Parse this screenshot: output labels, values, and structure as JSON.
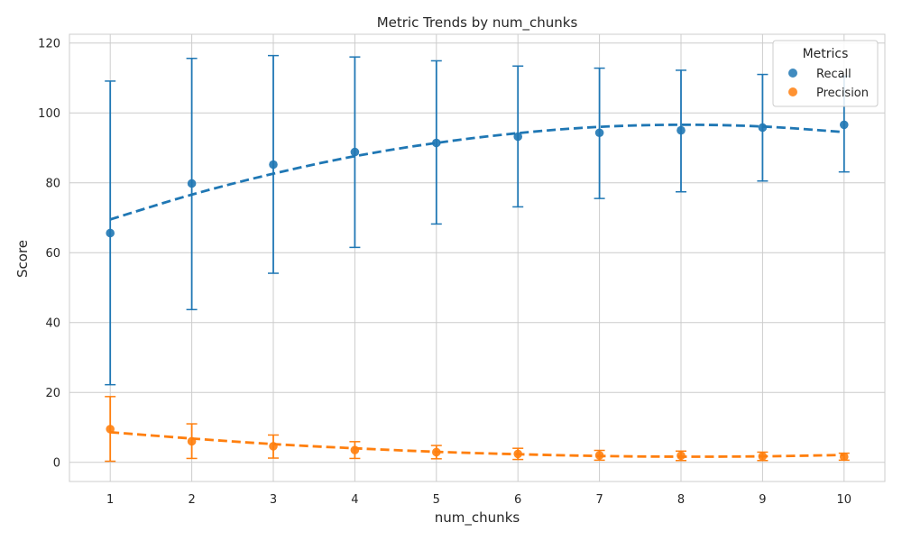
{
  "chart_data": {
    "type": "scatter",
    "title": "Metric Trends by num_chunks",
    "xlabel": "num_chunks",
    "ylabel": "Score",
    "xlim": [
      0.5,
      10.5
    ],
    "ylim": [
      -5.5,
      122.5
    ],
    "xticks": [
      1,
      2,
      3,
      4,
      5,
      6,
      7,
      8,
      9,
      10
    ],
    "yticks": [
      0,
      20,
      40,
      60,
      80,
      100,
      120
    ],
    "grid": true,
    "legend": {
      "title": "Metrics",
      "placement": "top-right"
    },
    "x": [
      1,
      2,
      3,
      4,
      5,
      6,
      7,
      8,
      9,
      10
    ],
    "series": [
      {
        "name": "Recall",
        "color": "#1f77b4",
        "values": [
          65.6,
          79.8,
          85.2,
          88.8,
          91.4,
          93.2,
          94.3,
          95.0,
          95.8,
          96.6
        ],
        "error_low": [
          22.2,
          43.7,
          54.1,
          61.5,
          68.2,
          73.1,
          75.5,
          77.4,
          80.5,
          83.1
        ],
        "error_high": [
          109.1,
          115.6,
          116.4,
          116.0,
          114.9,
          113.4,
          112.8,
          112.2,
          111.0,
          110.5
        ],
        "trend": [
          69.5,
          76.6,
          82.6,
          87.6,
          91.4,
          94.2,
          96.0,
          96.6,
          96.1,
          94.5
        ]
      },
      {
        "name": "Precision",
        "color": "#ff7f0e",
        "values": [
          9.5,
          6.0,
          4.6,
          3.5,
          2.9,
          2.4,
          2.0,
          1.9,
          1.7,
          1.6
        ],
        "error_low": [
          0.3,
          1.1,
          1.2,
          1.1,
          1.0,
          0.8,
          0.6,
          0.5,
          0.5,
          0.6
        ],
        "error_high": [
          18.8,
          11.0,
          7.8,
          5.9,
          4.8,
          4.0,
          3.4,
          3.2,
          2.9,
          2.6
        ],
        "trend": [
          8.6,
          6.8,
          5.2,
          4.0,
          3.0,
          2.3,
          1.8,
          1.6,
          1.7,
          2.1
        ]
      }
    ]
  }
}
